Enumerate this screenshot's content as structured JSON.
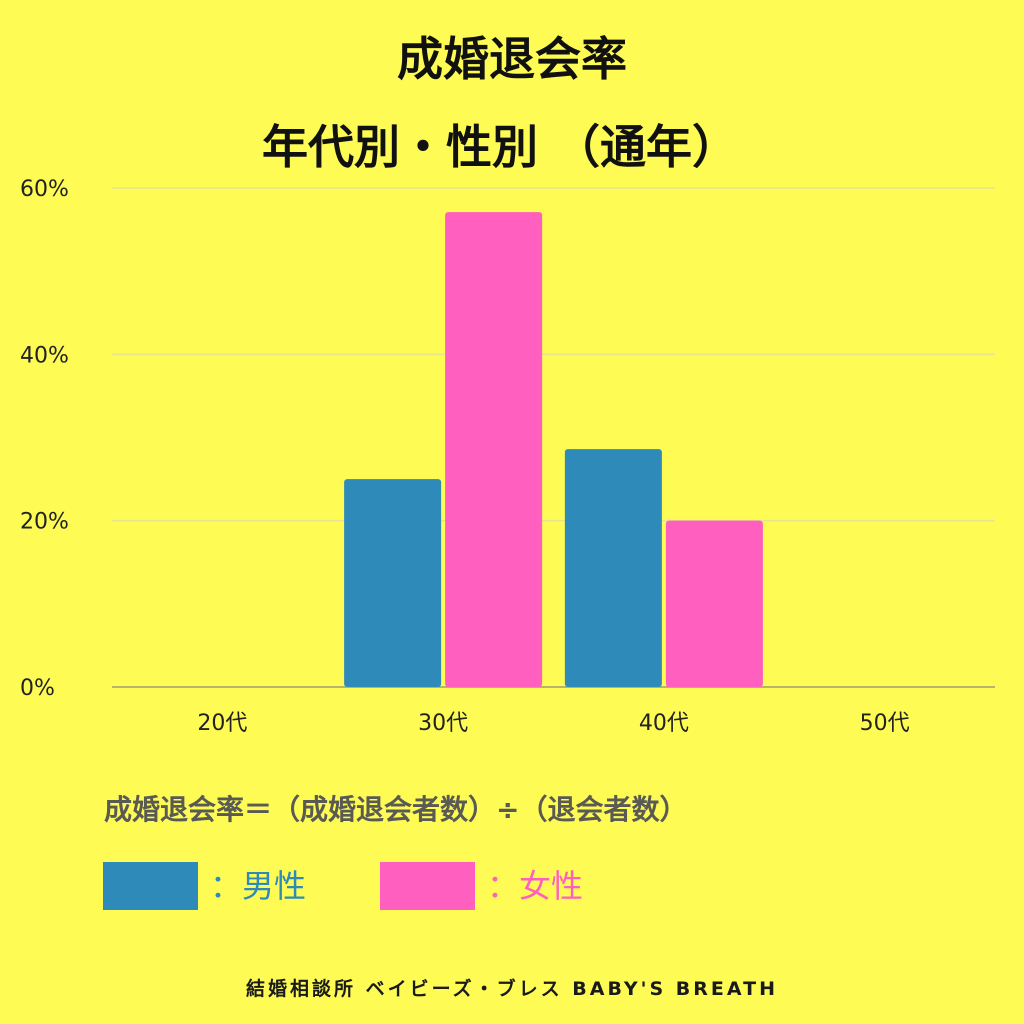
{
  "title_line1": "成婚退会率",
  "title_line2": "年代別・性別 （通年）",
  "formula": "成婚退会率＝（成婚退会者数）÷（退会者数）",
  "legend": {
    "male_label": "：男性",
    "female_label": "：女性"
  },
  "footer": "結婚相談所 ベイビーズ・ブレス BABY'S BREATH",
  "colors": {
    "background": "#FDFB54",
    "male": "#2E8AB8",
    "female": "#FF5FBF",
    "male_text": "#2E8AB8",
    "female_text": "#FF5FBF"
  },
  "chart_data": {
    "type": "bar",
    "categories": [
      "20代",
      "30代",
      "40代",
      "50代"
    ],
    "series": [
      {
        "name": "男性",
        "values": [
          0,
          25,
          28.6,
          0
        ]
      },
      {
        "name": "女性",
        "values": [
          0,
          57.1,
          20,
          0
        ]
      }
    ],
    "yticks": [
      "0%",
      "20%",
      "40%",
      "60%"
    ],
    "ytick_values": [
      0,
      20,
      40,
      60
    ],
    "ylim": [
      0,
      60
    ],
    "grid": true,
    "legend_position": "bottom-left"
  }
}
